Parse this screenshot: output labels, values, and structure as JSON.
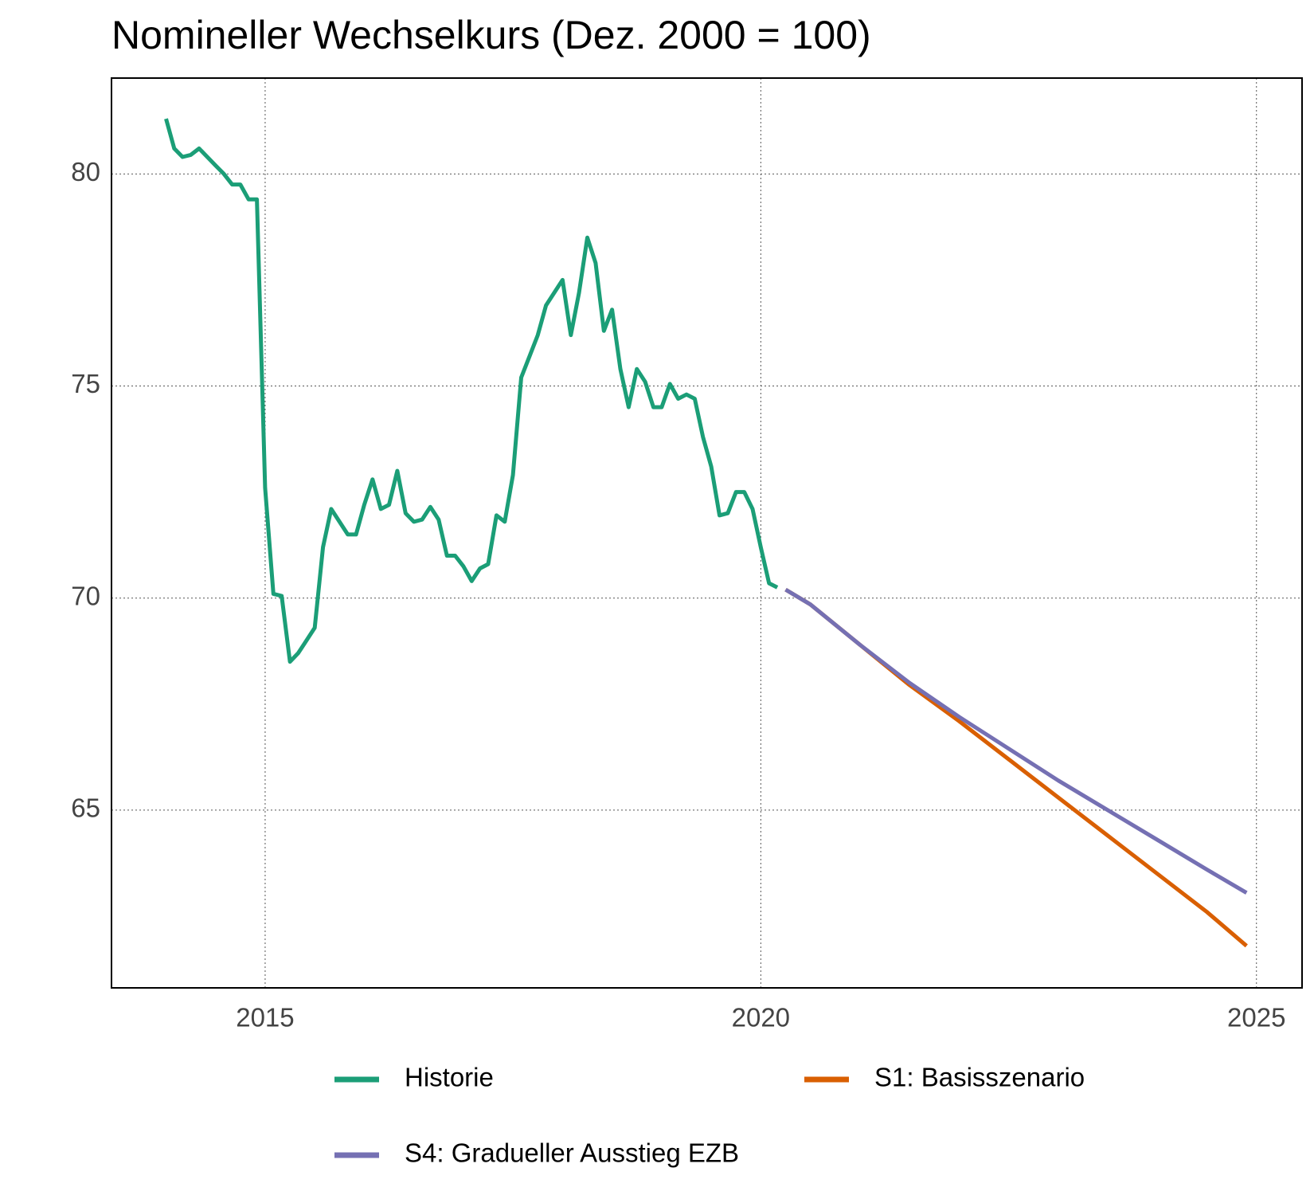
{
  "chart_data": {
    "type": "line",
    "title": "Nomineller Wechselkurs (Dez. 2000 = 100)",
    "xlim": [
      2013.45,
      2025.46
    ],
    "xticks": [
      2015,
      2020,
      2025
    ],
    "ylim": [
      60.81,
      82.26
    ],
    "yticks": [
      65,
      70,
      75,
      80
    ],
    "grid": true,
    "legend": "bottom",
    "series": [
      {
        "name": "Historie",
        "color": "#1b9e77",
        "x": [
          2014,
          2014.0833,
          2014.1667,
          2014.25,
          2014.3333,
          2014.4167,
          2014.5,
          2014.5833,
          2014.6667,
          2014.75,
          2014.8333,
          2014.9167,
          2015,
          2015.0833,
          2015.1667,
          2015.25,
          2015.3333,
          2015.4167,
          2015.5,
          2015.5833,
          2015.6667,
          2015.75,
          2015.8333,
          2015.9167,
          2016,
          2016.0833,
          2016.1667,
          2016.25,
          2016.3333,
          2016.4167,
          2016.5,
          2016.5833,
          2016.6667,
          2016.75,
          2016.8333,
          2016.9167,
          2017,
          2017.0833,
          2017.1667,
          2017.25,
          2017.3333,
          2017.4167,
          2017.5,
          2017.5833,
          2017.6667,
          2017.75,
          2017.8333,
          2017.9167,
          2018,
          2018.0833,
          2018.1667,
          2018.25,
          2018.3333,
          2018.4167,
          2018.5,
          2018.5833,
          2018.6667,
          2018.75,
          2018.8333,
          2018.9167,
          2019,
          2019.0833,
          2019.1667,
          2019.25,
          2019.3333,
          2019.4167,
          2019.5,
          2019.5833,
          2019.6667,
          2019.75,
          2019.8333,
          2019.9167,
          2020,
          2020.0833,
          2020.1667
        ],
        "values": [
          81.3,
          80.6,
          80.4,
          80.45,
          80.6,
          80.4,
          80.2,
          80.0,
          79.75,
          79.75,
          79.4,
          79.4,
          72.6,
          70.1,
          70.05,
          68.5,
          68.7,
          69.0,
          69.3,
          71.2,
          72.1,
          71.8,
          71.5,
          71.5,
          72.2,
          72.8,
          72.1,
          72.2,
          73.0,
          72.0,
          71.8,
          71.85,
          72.15,
          71.85,
          71.0,
          71.0,
          70.75,
          70.4,
          70.7,
          70.8,
          71.95,
          71.8,
          72.9,
          75.2,
          75.7,
          76.2,
          76.9,
          77.2,
          77.5,
          76.2,
          77.2,
          78.5,
          77.9,
          76.3,
          76.8,
          75.4,
          74.5,
          75.4,
          75.1,
          74.5,
          74.5,
          75.05,
          74.7,
          74.8,
          74.7,
          73.8,
          73.1,
          71.95,
          72.0,
          72.5,
          72.5,
          72.1,
          71.2,
          70.35,
          70.25
        ]
      },
      {
        "name": "S1: Basisszenario",
        "color": "#d95f02",
        "x": [
          2020.25,
          2020.5,
          2021,
          2021.5,
          2022,
          2022.5,
          2023,
          2023.5,
          2024,
          2024.5,
          2024.9
        ],
        "values": [
          70.2,
          69.85,
          68.9,
          67.95,
          67.1,
          66.2,
          65.3,
          64.4,
          63.5,
          62.6,
          61.8
        ]
      },
      {
        "name": "S4: Gradueller Ausstieg EZB",
        "color": "#7570b3",
        "x": [
          2020.25,
          2020.5,
          2021,
          2021.5,
          2022,
          2022.5,
          2023,
          2023.5,
          2024,
          2024.5,
          2024.9
        ],
        "values": [
          70.2,
          69.85,
          68.9,
          68.0,
          67.2,
          66.45,
          65.7,
          65.0,
          64.3,
          63.6,
          63.05
        ]
      }
    ]
  }
}
